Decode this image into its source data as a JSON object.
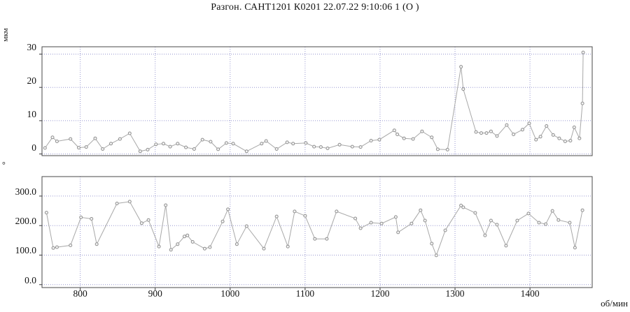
{
  "title": "Разгон. САНТ1201 К0201 22.07.22 9:10:06 1 (О )",
  "chart_data": [
    {
      "type": "line",
      "name": "amplitude-vs-rpm",
      "ylabel": "мкм",
      "xlabel": "об/мин",
      "legend": "none",
      "grid": "dotted-blue",
      "ylim": [
        -0.5,
        32.2
      ],
      "xlim": [
        749,
        1483
      ],
      "yticks": [
        0,
        10,
        20,
        30
      ],
      "ytick_labels": [
        "0",
        "10",
        "20",
        "30"
      ],
      "xticks": [
        800,
        900,
        1000,
        1100,
        1200,
        1300,
        1400
      ],
      "xtick_labels": [
        "800",
        "900",
        "1000",
        "1100",
        "1200",
        "1300",
        "1400"
      ],
      "x": [
        753,
        763,
        769,
        787,
        798,
        808,
        820,
        830,
        841,
        853,
        866,
        880,
        890,
        901,
        911,
        920,
        930,
        941,
        952,
        963,
        974,
        984,
        995,
        1004,
        1022,
        1042,
        1048,
        1062,
        1076,
        1084,
        1101,
        1112,
        1121,
        1130,
        1146,
        1163,
        1174,
        1188,
        1199,
        1219,
        1223,
        1232,
        1244,
        1256,
        1269,
        1277,
        1290,
        1308,
        1311,
        1328,
        1335,
        1342,
        1348,
        1356,
        1369,
        1378,
        1390,
        1399,
        1408,
        1414,
        1422,
        1431,
        1439,
        1447,
        1454,
        1459,
        1466,
        1470,
        1471
      ],
      "y": [
        1.8,
        5.0,
        3.8,
        4.5,
        1.9,
        2.1,
        4.7,
        1.5,
        3.1,
        4.5,
        6.2,
        0.8,
        1.3,
        2.9,
        3.1,
        2.2,
        3.1,
        2.0,
        1.5,
        4.3,
        3.7,
        1.4,
        3.3,
        3.1,
        0.8,
        3.1,
        3.9,
        1.5,
        3.5,
        3.1,
        3.3,
        2.2,
        2.1,
        1.7,
        2.8,
        2.2,
        2.1,
        4.0,
        4.3,
        7.1,
        5.9,
        4.7,
        4.5,
        6.8,
        5.0,
        1.4,
        1.3,
        26.2,
        19.5,
        6.6,
        6.3,
        6.3,
        6.8,
        5.4,
        8.7,
        5.9,
        7.3,
        9.2,
        4.3,
        5.2,
        8.4,
        5.7,
        4.7,
        3.8,
        4.0,
        8.0,
        4.7,
        15.2,
        30.5
      ]
    },
    {
      "type": "line",
      "name": "phase-vs-rpm",
      "ylabel": "°",
      "xlabel": "об/мин",
      "legend": "none",
      "grid": "dotted-blue",
      "ylim": [
        -10,
        366
      ],
      "xlim": [
        749,
        1483
      ],
      "yticks": [
        0,
        100,
        200,
        300
      ],
      "ytick_labels": [
        "0.0",
        "100.0",
        "200.0",
        "300.0"
      ],
      "xticks": [
        800,
        900,
        1000,
        1100,
        1200,
        1300,
        1400
      ],
      "xtick_labels": [
        "800",
        "900",
        "1000",
        "1100",
        "1200",
        "1300",
        "1400"
      ],
      "x": [
        755,
        764,
        769,
        787,
        801,
        815,
        822,
        849,
        866,
        882,
        891,
        905,
        914,
        921,
        930,
        939,
        943,
        950,
        966,
        973,
        990,
        997,
        1009,
        1022,
        1045,
        1062,
        1077,
        1086,
        1100,
        1113,
        1129,
        1142,
        1167,
        1174,
        1188,
        1202,
        1221,
        1224,
        1242,
        1254,
        1260,
        1269,
        1275,
        1287,
        1308,
        1311,
        1327,
        1340,
        1348,
        1356,
        1368,
        1383,
        1398,
        1412,
        1421,
        1430,
        1438,
        1453,
        1460,
        1470
      ],
      "y": [
        244,
        124,
        127,
        133,
        228,
        223,
        137,
        275,
        281,
        208,
        219,
        129,
        269,
        118,
        137,
        163,
        167,
        145,
        122,
        127,
        214,
        255,
        137,
        198,
        122,
        231,
        129,
        248,
        233,
        155,
        155,
        248,
        224,
        191,
        210,
        207,
        229,
        177,
        207,
        252,
        217,
        139,
        99,
        184,
        268,
        262,
        243,
        167,
        217,
        203,
        132,
        217,
        241,
        210,
        205,
        250,
        219,
        210,
        125,
        252
      ]
    }
  ],
  "colors": {
    "background": "#ffffff",
    "frame": "#4a4a4a",
    "grid": "#9898d0",
    "tick": "#3a3a3a",
    "line": "#a8a8a8",
    "marker_fill": "#f5f5f5",
    "marker_stroke": "#8f8f8f",
    "text": "#111111"
  }
}
